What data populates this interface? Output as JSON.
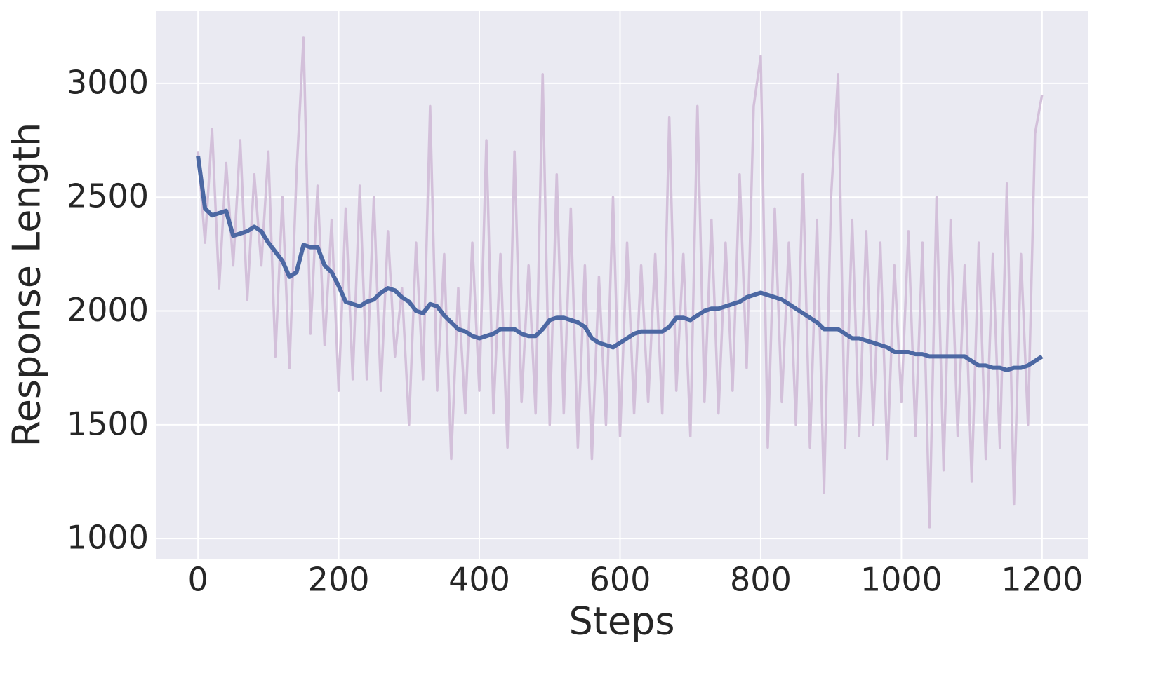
{
  "chart_data": {
    "type": "line",
    "xlabel": "Steps",
    "ylabel": "Response Length",
    "xlim": [
      -60,
      1265
    ],
    "ylim": [
      908,
      3320
    ],
    "xticks": [
      0,
      200,
      400,
      600,
      800,
      1000,
      1200
    ],
    "yticks": [
      1000,
      1500,
      2000,
      2500,
      3000
    ],
    "grid": true,
    "x": [
      0,
      10,
      20,
      30,
      40,
      50,
      60,
      70,
      80,
      90,
      100,
      110,
      120,
      130,
      140,
      150,
      160,
      170,
      180,
      190,
      200,
      210,
      220,
      230,
      240,
      250,
      260,
      270,
      280,
      290,
      300,
      310,
      320,
      330,
      340,
      350,
      360,
      370,
      380,
      390,
      400,
      410,
      420,
      430,
      440,
      450,
      460,
      470,
      480,
      490,
      500,
      510,
      520,
      530,
      540,
      550,
      560,
      570,
      580,
      590,
      600,
      610,
      620,
      630,
      640,
      650,
      660,
      670,
      680,
      690,
      700,
      710,
      720,
      730,
      740,
      750,
      760,
      770,
      780,
      790,
      800,
      810,
      820,
      830,
      840,
      850,
      860,
      870,
      880,
      890,
      900,
      910,
      920,
      930,
      940,
      950,
      960,
      970,
      980,
      990,
      1000,
      1010,
      1020,
      1030,
      1040,
      1050,
      1060,
      1070,
      1080,
      1090,
      1100,
      1110,
      1120,
      1130,
      1140,
      1150,
      1160,
      1170,
      1180,
      1190,
      1200
    ],
    "series": [
      {
        "color": "#d3c0da",
        "width": 3.5,
        "values": [
          2700,
          2300,
          2800,
          2100,
          2650,
          2200,
          2750,
          2050,
          2600,
          2200,
          2700,
          1800,
          2500,
          1750,
          2600,
          3200,
          1900,
          2550,
          1850,
          2400,
          1650,
          2450,
          1700,
          2550,
          1700,
          2500,
          1650,
          2350,
          1800,
          2100,
          1500,
          2300,
          1700,
          2900,
          1650,
          2250,
          1350,
          2100,
          1550,
          2300,
          1650,
          2750,
          1550,
          2250,
          1400,
          2700,
          1600,
          2200,
          1550,
          3040,
          1500,
          2600,
          1550,
          2450,
          1400,
          2200,
          1350,
          2150,
          1500,
          2500,
          1450,
          2300,
          1550,
          2200,
          1600,
          2250,
          1550,
          2850,
          1650,
          2250,
          1450,
          2900,
          1600,
          2400,
          1550,
          2300,
          1650,
          2600,
          1750,
          2900,
          3120,
          1400,
          2450,
          1600,
          2300,
          1500,
          2600,
          1400,
          2400,
          1200,
          2500,
          3040,
          1400,
          2400,
          1450,
          2350,
          1500,
          2300,
          1350,
          2200,
          1600,
          2350,
          1450,
          2300,
          1050,
          2500,
          1300,
          2400,
          1450,
          2200,
          1250,
          2300,
          1350,
          2250,
          1400,
          2560,
          1150,
          2250,
          1500,
          2780,
          2950
        ]
      },
      {
        "color": "#4c68a3",
        "width": 6,
        "values": [
          2680,
          2450,
          2420,
          2430,
          2440,
          2330,
          2340,
          2350,
          2370,
          2350,
          2300,
          2260,
          2220,
          2150,
          2170,
          2290,
          2280,
          2280,
          2200,
          2170,
          2110,
          2040,
          2030,
          2020,
          2040,
          2050,
          2080,
          2100,
          2090,
          2060,
          2040,
          2000,
          1990,
          2030,
          2020,
          1980,
          1950,
          1920,
          1910,
          1890,
          1880,
          1890,
          1900,
          1920,
          1920,
          1920,
          1900,
          1890,
          1890,
          1920,
          1960,
          1970,
          1970,
          1960,
          1950,
          1930,
          1880,
          1860,
          1850,
          1840,
          1860,
          1880,
          1900,
          1910,
          1910,
          1910,
          1910,
          1930,
          1970,
          1970,
          1960,
          1980,
          2000,
          2010,
          2010,
          2020,
          2030,
          2040,
          2060,
          2070,
          2080,
          2070,
          2060,
          2050,
          2030,
          2010,
          1990,
          1970,
          1950,
          1920,
          1920,
          1920,
          1900,
          1880,
          1880,
          1870,
          1860,
          1850,
          1840,
          1820,
          1820,
          1820,
          1810,
          1810,
          1800,
          1800,
          1800,
          1800,
          1800,
          1800,
          1780,
          1760,
          1760,
          1750,
          1750,
          1740,
          1750,
          1750,
          1760,
          1780,
          1800
        ]
      }
    ]
  }
}
